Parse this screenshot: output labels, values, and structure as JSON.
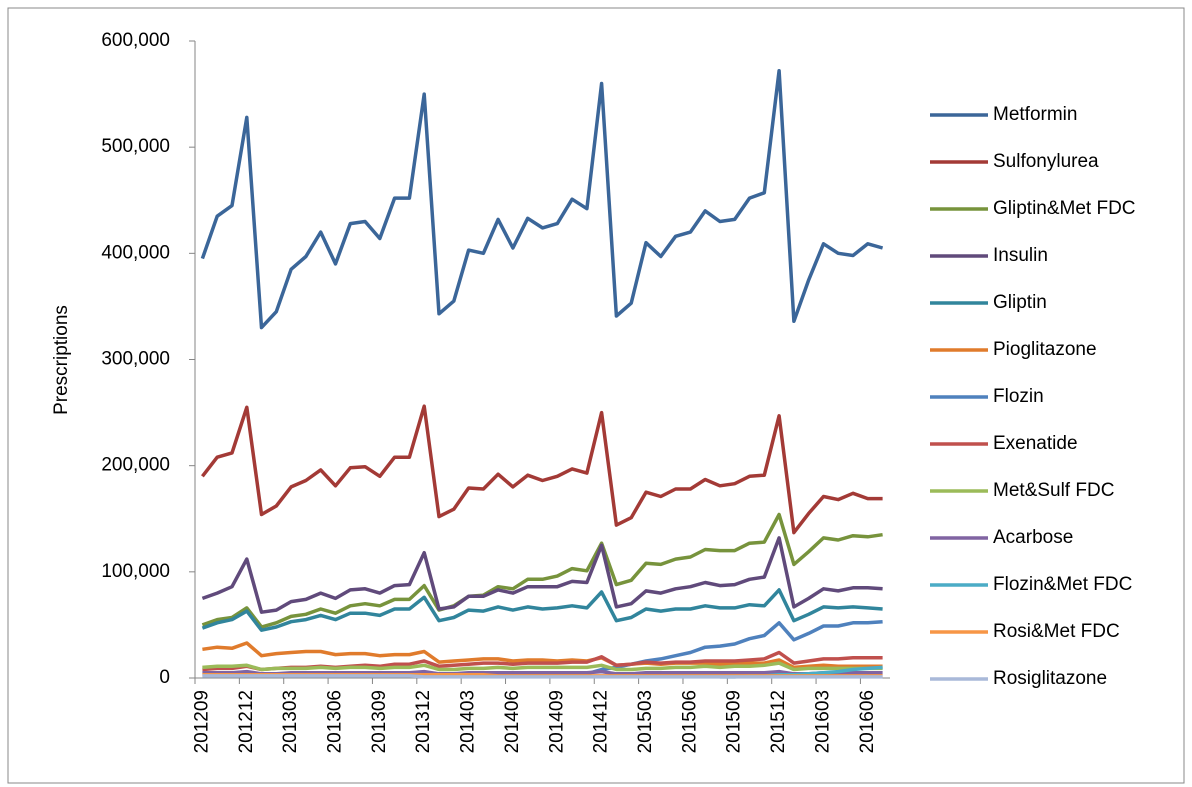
{
  "chart_data": {
    "type": "line",
    "y_label": "Prescriptions",
    "categories": [
      "201209",
      null,
      null,
      "201212",
      null,
      null,
      "201303",
      null,
      null,
      "201306",
      null,
      null,
      "201309",
      null,
      null,
      "201312",
      null,
      null,
      "201403",
      null,
      null,
      "201406",
      null,
      null,
      "201409",
      null,
      null,
      "201412",
      null,
      null,
      "201503",
      null,
      null,
      "201506",
      null,
      null,
      "201509",
      null,
      null,
      "201512",
      null,
      null,
      "201603",
      null,
      null,
      "201606",
      null
    ],
    "ylim": [
      0,
      600000
    ],
    "yticks": [
      0,
      {
        "value": 100000,
        "label": "100,000"
      },
      {
        "value": 200000,
        "label": "200,000"
      },
      {
        "value": 300000,
        "label": "300,000"
      },
      {
        "value": 400000,
        "label": "400,000"
      },
      {
        "value": 500000,
        "label": "500,000"
      },
      {
        "value": 600000,
        "label": "600,000"
      }
    ],
    "grid": false,
    "legend": "right",
    "series": [
      {
        "name": "Metformin",
        "color": "#3b6699",
        "values": [
          395000,
          435000,
          445000,
          528000,
          330000,
          345000,
          385000,
          397000,
          420000,
          390000,
          428000,
          430000,
          414000,
          452000,
          452000,
          550000,
          343000,
          355000,
          403000,
          400000,
          432000,
          405000,
          433000,
          424000,
          428000,
          451000,
          442000,
          560000,
          341000,
          353000,
          410000,
          397000,
          416000,
          420000,
          440000,
          430000,
          432000,
          452000,
          457000,
          572000,
          336000,
          375000,
          409000,
          400000,
          398000,
          409000,
          405000
        ]
      },
      {
        "name": "Sulfonylurea",
        "color": "#a33a36",
        "values": [
          190000,
          208000,
          212000,
          255000,
          154000,
          162000,
          180000,
          186000,
          196000,
          181000,
          198000,
          199000,
          190000,
          208000,
          208000,
          256000,
          152000,
          159000,
          179000,
          178000,
          192000,
          180000,
          191000,
          186000,
          190000,
          197000,
          193000,
          250000,
          144000,
          151000,
          175000,
          171000,
          178000,
          178000,
          187000,
          181000,
          183000,
          190000,
          191000,
          247000,
          137000,
          155000,
          171000,
          168000,
          174000,
          169000,
          169000
        ]
      },
      {
        "name": "Gliptin&Met FDC",
        "color": "#77933c",
        "values": [
          50000,
          55000,
          57000,
          66000,
          48000,
          52000,
          58000,
          60000,
          65000,
          61000,
          68000,
          70000,
          68000,
          74000,
          74000,
          87000,
          64000,
          68000,
          77000,
          78000,
          86000,
          84000,
          93000,
          93000,
          96000,
          103000,
          101000,
          127000,
          88000,
          92000,
          108000,
          107000,
          112000,
          114000,
          121000,
          120000,
          120000,
          127000,
          128000,
          154000,
          107000,
          119000,
          132000,
          130000,
          134000,
          133000,
          135000
        ]
      },
      {
        "name": "Insulin",
        "color": "#604a7b",
        "values": [
          75000,
          80000,
          86000,
          112000,
          62000,
          64000,
          72000,
          74000,
          80000,
          75000,
          83000,
          84000,
          80000,
          87000,
          88000,
          118000,
          65000,
          67000,
          77000,
          77000,
          83000,
          80000,
          86000,
          86000,
          86000,
          91000,
          90000,
          125000,
          67000,
          70000,
          82000,
          80000,
          84000,
          86000,
          90000,
          87000,
          88000,
          93000,
          95000,
          132000,
          67000,
          75000,
          84000,
          82000,
          85000,
          85000,
          84000
        ]
      },
      {
        "name": "Gliptin",
        "color": "#31859c",
        "values": [
          47000,
          52000,
          55000,
          63000,
          45000,
          48000,
          53000,
          55000,
          59000,
          55000,
          61000,
          61000,
          59000,
          65000,
          65000,
          76000,
          54000,
          57000,
          64000,
          63000,
          67000,
          64000,
          67000,
          65000,
          66000,
          68000,
          66000,
          81000,
          54000,
          57000,
          65000,
          63000,
          65000,
          65000,
          68000,
          66000,
          66000,
          69000,
          68000,
          83000,
          54000,
          60000,
          67000,
          66000,
          67000,
          66000,
          65000
        ]
      },
      {
        "name": "Pioglitazone",
        "color": "#e07b2c",
        "values": [
          27000,
          29000,
          28000,
          33000,
          21000,
          23000,
          24000,
          25000,
          25000,
          22000,
          23000,
          23000,
          21000,
          22000,
          22000,
          25000,
          15000,
          16000,
          17000,
          18000,
          18000,
          16000,
          17000,
          17000,
          16000,
          17000,
          16000,
          19000,
          12000,
          13000,
          14000,
          13000,
          14000,
          14000,
          14000,
          13000,
          13000,
          14000,
          14000,
          17000,
          10000,
          11000,
          12000,
          11000,
          11000,
          11000,
          11000
        ]
      },
      {
        "name": "Flozin",
        "color": "#4f81bd",
        "values": [
          null,
          null,
          null,
          null,
          null,
          null,
          null,
          null,
          null,
          null,
          null,
          null,
          null,
          null,
          null,
          null,
          null,
          null,
          null,
          null,
          null,
          null,
          null,
          null,
          null,
          2000,
          4000,
          8000,
          10000,
          13000,
          16000,
          18000,
          21000,
          24000,
          29000,
          30000,
          32000,
          37000,
          40000,
          52000,
          36000,
          42000,
          49000,
          49000,
          52000,
          52000,
          53000
        ]
      },
      {
        "name": "Exenatide",
        "color": "#c0504d",
        "values": [
          8000,
          9000,
          9000,
          11000,
          8000,
          9000,
          10000,
          10000,
          11000,
          10000,
          11000,
          12000,
          11000,
          13000,
          13000,
          16000,
          11000,
          12000,
          13000,
          14000,
          14000,
          13000,
          14000,
          14000,
          14000,
          15000,
          15000,
          20000,
          12000,
          13000,
          15000,
          14000,
          15000,
          15000,
          16000,
          16000,
          16000,
          17000,
          18000,
          24000,
          14000,
          16000,
          18000,
          18000,
          19000,
          19000,
          19000
        ]
      },
      {
        "name": "Met&Sulf FDC",
        "color": "#9bbb59",
        "values": [
          10000,
          11000,
          11000,
          12000,
          8000,
          9000,
          9000,
          9000,
          10000,
          9000,
          10000,
          10000,
          9000,
          10000,
          10000,
          12000,
          8000,
          8000,
          9000,
          9000,
          10000,
          9000,
          10000,
          10000,
          10000,
          10000,
          10000,
          12000,
          8000,
          8000,
          9000,
          9000,
          10000,
          10000,
          11000,
          10000,
          11000,
          11000,
          12000,
          14000,
          8000,
          9000,
          9000,
          9000,
          9000,
          9000,
          9000
        ]
      },
      {
        "name": "Acarbose",
        "color": "#8064a2",
        "values": [
          5000,
          5000,
          5000,
          6000,
          4000,
          4000,
          5000,
          5000,
          5000,
          5000,
          5000,
          5000,
          5000,
          5000,
          5000,
          6000,
          4000,
          4000,
          5000,
          5000,
          5000,
          5000,
          5000,
          5000,
          5000,
          5000,
          5000,
          6000,
          4000,
          4000,
          5000,
          5000,
          5000,
          5000,
          5000,
          5000,
          5000,
          5000,
          5000,
          6000,
          4000,
          4000,
          5000,
          5000,
          5000,
          5000,
          5000
        ]
      },
      {
        "name": "Flozin&Met FDC",
        "color": "#4bacc6",
        "values": [
          null,
          null,
          null,
          null,
          null,
          null,
          null,
          null,
          null,
          null,
          null,
          null,
          null,
          null,
          null,
          null,
          null,
          null,
          null,
          null,
          null,
          null,
          null,
          null,
          null,
          null,
          null,
          null,
          null,
          null,
          null,
          null,
          null,
          null,
          null,
          1000,
          1000,
          2000,
          2000,
          3000,
          3000,
          4000,
          5000,
          6000,
          8000,
          9000,
          10000
        ]
      },
      {
        "name": "Rosi&Met FDC",
        "color": "#f79646",
        "values": [
          3000,
          3000,
          3000,
          3000,
          3000,
          3000,
          3000,
          3000,
          3000,
          3000,
          3000,
          3000,
          3000,
          3000,
          3000,
          3000,
          3000,
          3000,
          3000,
          3000,
          2000,
          2000,
          2000,
          2000,
          2000,
          2000,
          2000,
          2000,
          2000,
          2000,
          2000,
          2000,
          2000,
          2000,
          2000,
          2000,
          2000,
          2000,
          2000,
          2000,
          2000,
          2000,
          2000,
          2000,
          2000,
          2000,
          2000
        ]
      },
      {
        "name": "Rosiglitazone",
        "color": "#a9b9d9",
        "values": [
          2000,
          2000,
          2000,
          2000,
          2000,
          2000,
          2000,
          2000,
          2000,
          2000,
          2000,
          2000,
          2000,
          2000,
          2000,
          1000,
          1000,
          1000,
          1000,
          1000,
          1000,
          1000,
          1000,
          1000,
          1000,
          1000,
          1000,
          1000,
          1000,
          1000,
          1000,
          1000,
          1000,
          1000,
          1000,
          1000,
          1000,
          1000,
          1000,
          1000,
          1000,
          1000,
          1000,
          1000,
          1000,
          1000,
          1000
        ]
      }
    ]
  }
}
